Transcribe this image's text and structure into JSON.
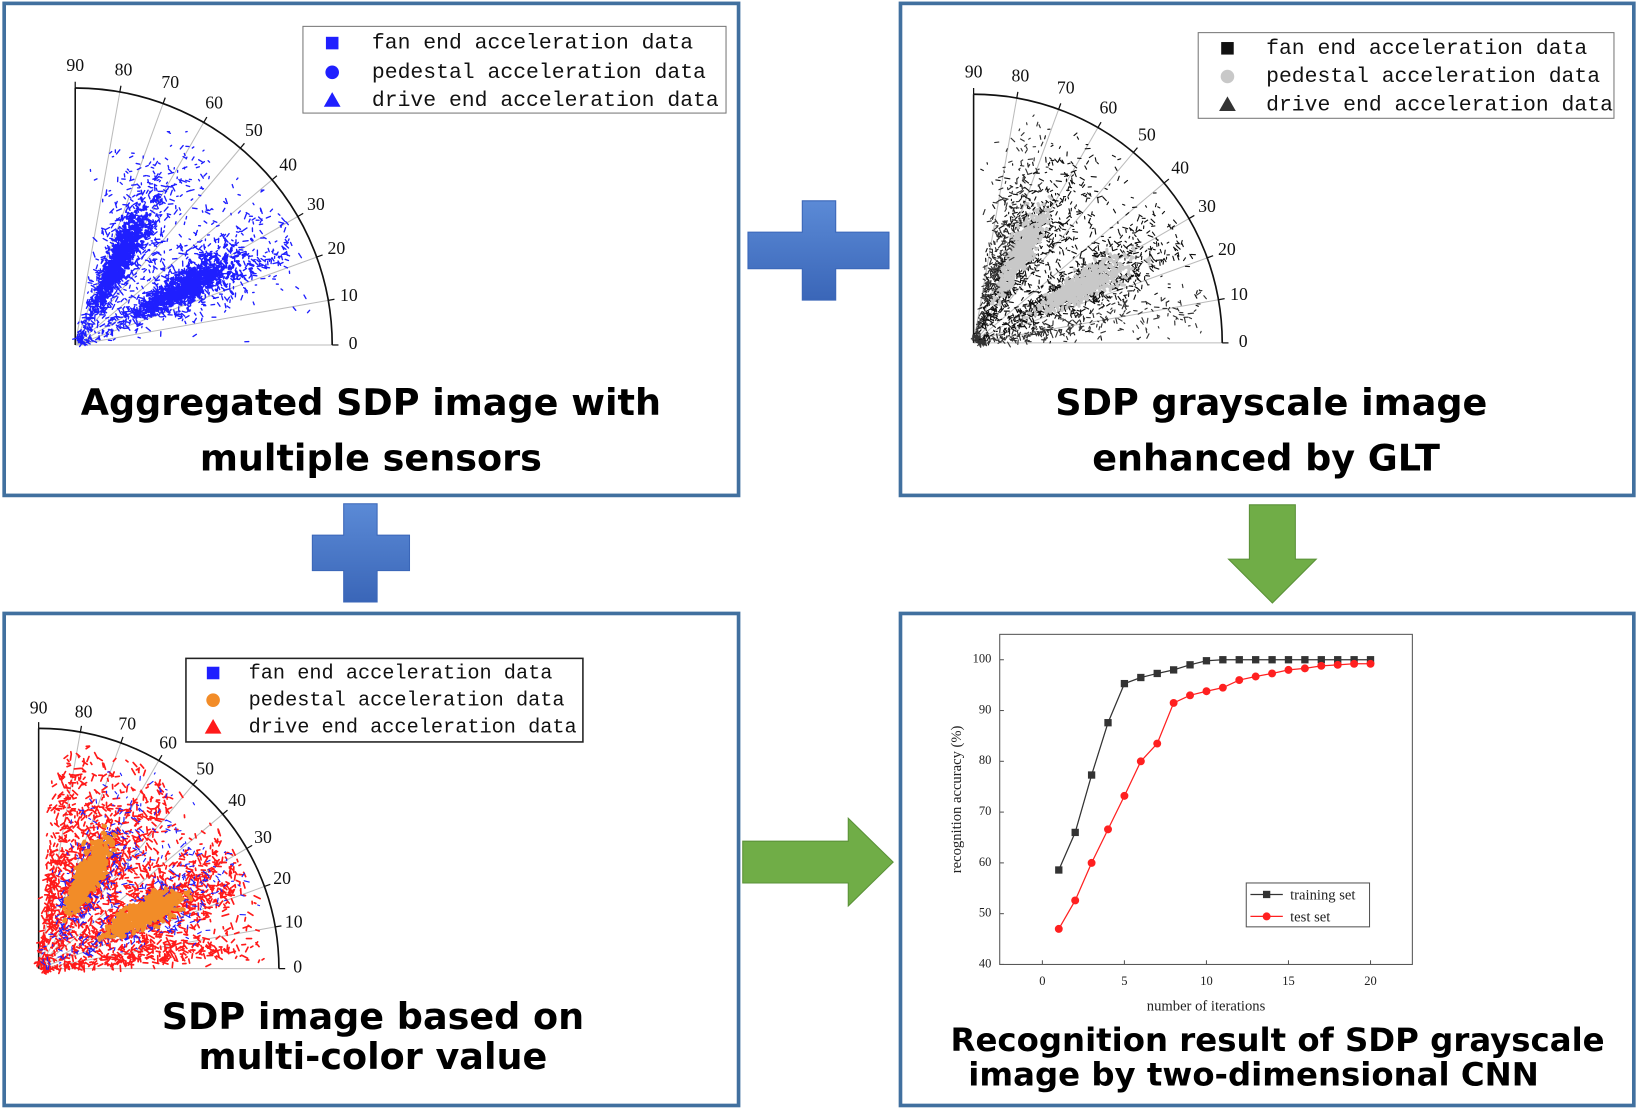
{
  "panels": [
    {
      "caption": [
        "Aggregated SDP image with",
        "multiple sensors"
      ],
      "legend": [
        "fan end acceleration data",
        "pedestal acceleration data",
        "drive end acceleration data"
      ],
      "colors": [
        "#1f1fff",
        "#1f1fff",
        "#1f1fff"
      ],
      "angle_ticks": [
        0,
        10,
        20,
        30,
        40,
        50,
        60,
        70,
        80,
        90
      ]
    },
    {
      "caption": [
        "SDP grayscale image",
        "enhanced by GLT"
      ],
      "legend": [
        "fan end acceleration data",
        "pedestal acceleration data",
        "drive end acceleration data"
      ],
      "colors": [
        "#111111",
        "#c8c8c8",
        "#333333"
      ],
      "angle_ticks": [
        0,
        10,
        20,
        30,
        40,
        50,
        60,
        70,
        80,
        90
      ]
    },
    {
      "caption": [
        "SDP image based on",
        "multi-color value"
      ],
      "legend": [
        "fan end acceleration data",
        "pedestal acceleration data",
        "drive end acceleration data"
      ],
      "colors": [
        "#1f1fff",
        "#f28c28",
        "#ff1a1a"
      ],
      "angle_ticks": [
        0,
        10,
        20,
        30,
        40,
        50,
        60,
        70,
        80,
        90
      ]
    },
    {
      "caption": [
        "Recognition result of SDP grayscale",
        "image by two-dimensional CNN"
      ],
      "chart": {
        "type": "line",
        "x_label": "number of iterations",
        "y_label": "recognition accuracy (%)",
        "x": [
          1,
          2,
          3,
          4,
          5,
          6,
          7,
          8,
          9,
          10,
          11,
          12,
          13,
          14,
          15,
          16,
          17,
          18,
          19,
          20
        ],
        "series": [
          {
            "name": "training set",
            "color": "#333333",
            "values": [
              58.6,
              66,
              77.3,
              87.6,
              95.3,
              96.5,
              97.3,
              98,
              99,
              99.8,
              100,
              100,
              100,
              100,
              100,
              100,
              100,
              100,
              100,
              100
            ]
          },
          {
            "name": "test set",
            "color": "#ff2020",
            "values": [
              47,
              52.6,
              60,
              66.6,
              73.2,
              80,
              83.5,
              91.5,
              93,
              93.8,
              94.5,
              96,
              96.7,
              97.3,
              98,
              98.3,
              98.8,
              99,
              99.2,
              99.2
            ]
          }
        ],
        "xlim": [
          -2.6,
          22.55
        ],
        "ylim": [
          40,
          105
        ],
        "xticks": [
          0,
          5,
          10,
          15,
          20
        ],
        "yticks": [
          40,
          50,
          60,
          70,
          80,
          90,
          100
        ]
      }
    }
  ]
}
